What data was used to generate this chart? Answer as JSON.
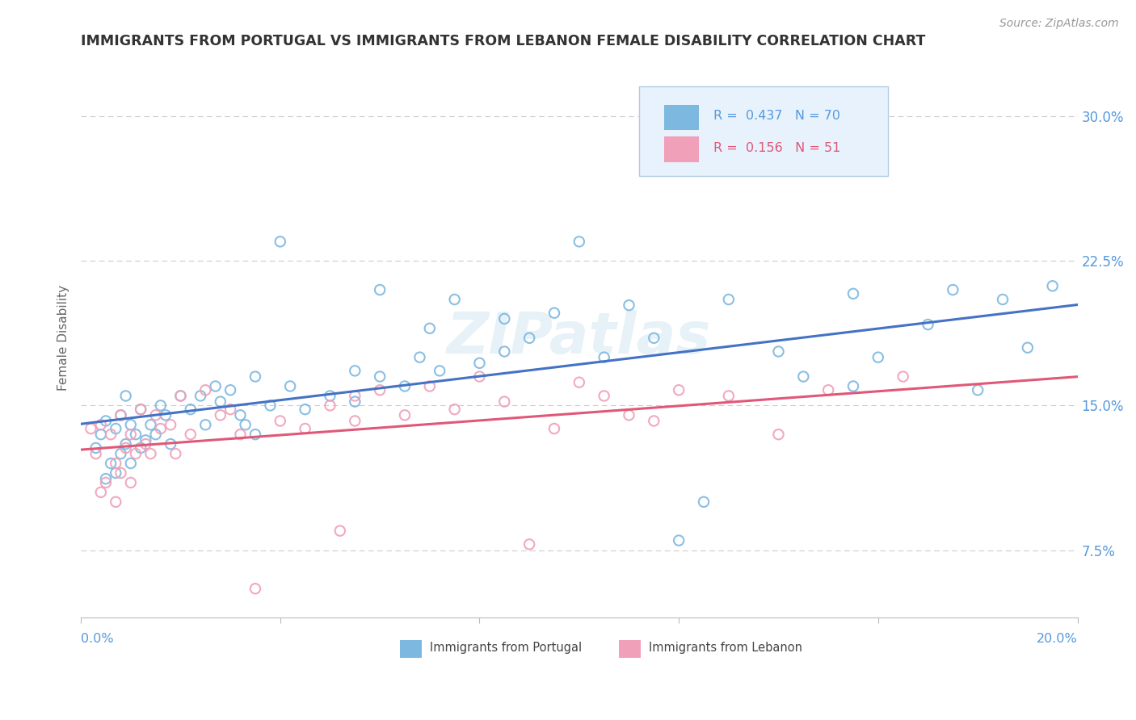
{
  "title": "IMMIGRANTS FROM PORTUGAL VS IMMIGRANTS FROM LEBANON FEMALE DISABILITY CORRELATION CHART",
  "source": "Source: ZipAtlas.com",
  "ylabel_label": "Female Disability",
  "xlim": [
    0.0,
    20.0
  ],
  "ylim": [
    4.0,
    33.0
  ],
  "yticks": [
    7.5,
    15.0,
    22.5,
    30.0
  ],
  "xticks": [
    0.0,
    4.0,
    8.0,
    12.0,
    16.0,
    20.0
  ],
  "portugal_color": "#7db8e0",
  "lebanon_color": "#f0a0b8",
  "portugal_line_color": "#4472c4",
  "lebanon_line_color": "#e05878",
  "portugal_R": 0.437,
  "portugal_N": 70,
  "lebanon_R": 0.156,
  "lebanon_N": 51,
  "portugal_points": [
    [
      0.3,
      12.8
    ],
    [
      0.4,
      13.5
    ],
    [
      0.5,
      11.2
    ],
    [
      0.5,
      14.2
    ],
    [
      0.6,
      12.0
    ],
    [
      0.7,
      13.8
    ],
    [
      0.7,
      11.5
    ],
    [
      0.8,
      14.5
    ],
    [
      0.8,
      12.5
    ],
    [
      0.9,
      13.0
    ],
    [
      0.9,
      15.5
    ],
    [
      1.0,
      12.0
    ],
    [
      1.0,
      14.0
    ],
    [
      1.1,
      13.5
    ],
    [
      1.2,
      12.8
    ],
    [
      1.2,
      14.8
    ],
    [
      1.3,
      13.2
    ],
    [
      1.4,
      14.0
    ],
    [
      1.5,
      13.5
    ],
    [
      1.6,
      15.0
    ],
    [
      1.7,
      14.5
    ],
    [
      1.8,
      13.0
    ],
    [
      2.0,
      15.5
    ],
    [
      2.2,
      14.8
    ],
    [
      2.4,
      15.5
    ],
    [
      2.5,
      14.0
    ],
    [
      2.7,
      16.0
    ],
    [
      2.8,
      15.2
    ],
    [
      3.0,
      15.8
    ],
    [
      3.2,
      14.5
    ],
    [
      3.3,
      14.0
    ],
    [
      3.5,
      16.5
    ],
    [
      3.5,
      13.5
    ],
    [
      3.8,
      15.0
    ],
    [
      4.0,
      23.5
    ],
    [
      4.2,
      16.0
    ],
    [
      4.5,
      14.8
    ],
    [
      5.0,
      15.5
    ],
    [
      5.5,
      16.8
    ],
    [
      5.5,
      15.2
    ],
    [
      6.0,
      16.5
    ],
    [
      6.0,
      21.0
    ],
    [
      6.5,
      16.0
    ],
    [
      6.8,
      17.5
    ],
    [
      7.0,
      19.0
    ],
    [
      7.2,
      16.8
    ],
    [
      7.5,
      20.5
    ],
    [
      8.0,
      17.2
    ],
    [
      8.5,
      17.8
    ],
    [
      8.5,
      19.5
    ],
    [
      9.0,
      18.5
    ],
    [
      9.5,
      19.8
    ],
    [
      10.0,
      23.5
    ],
    [
      10.5,
      17.5
    ],
    [
      11.0,
      20.2
    ],
    [
      11.5,
      18.5
    ],
    [
      12.0,
      8.0
    ],
    [
      12.5,
      10.0
    ],
    [
      13.0,
      20.5
    ],
    [
      14.0,
      17.8
    ],
    [
      14.5,
      16.5
    ],
    [
      15.5,
      16.0
    ],
    [
      15.5,
      20.8
    ],
    [
      16.0,
      17.5
    ],
    [
      17.0,
      19.2
    ],
    [
      17.5,
      21.0
    ],
    [
      18.0,
      15.8
    ],
    [
      18.5,
      20.5
    ],
    [
      19.0,
      18.0
    ],
    [
      19.5,
      21.2
    ]
  ],
  "lebanon_points": [
    [
      0.2,
      13.8
    ],
    [
      0.3,
      12.5
    ],
    [
      0.4,
      10.5
    ],
    [
      0.4,
      14.0
    ],
    [
      0.5,
      11.0
    ],
    [
      0.6,
      13.5
    ],
    [
      0.7,
      12.0
    ],
    [
      0.7,
      10.0
    ],
    [
      0.8,
      14.5
    ],
    [
      0.8,
      11.5
    ],
    [
      0.9,
      12.8
    ],
    [
      1.0,
      11.0
    ],
    [
      1.0,
      13.5
    ],
    [
      1.1,
      12.5
    ],
    [
      1.2,
      14.8
    ],
    [
      1.3,
      13.0
    ],
    [
      1.4,
      12.5
    ],
    [
      1.5,
      14.5
    ],
    [
      1.6,
      13.8
    ],
    [
      1.8,
      14.0
    ],
    [
      1.9,
      12.5
    ],
    [
      2.0,
      15.5
    ],
    [
      2.2,
      13.5
    ],
    [
      2.5,
      15.8
    ],
    [
      2.8,
      14.5
    ],
    [
      3.0,
      14.8
    ],
    [
      3.2,
      13.5
    ],
    [
      3.5,
      5.5
    ],
    [
      4.0,
      14.2
    ],
    [
      4.5,
      13.8
    ],
    [
      5.0,
      15.0
    ],
    [
      5.2,
      8.5
    ],
    [
      5.5,
      14.2
    ],
    [
      5.5,
      15.5
    ],
    [
      6.0,
      15.8
    ],
    [
      6.5,
      14.5
    ],
    [
      7.0,
      16.0
    ],
    [
      7.5,
      14.8
    ],
    [
      8.0,
      16.5
    ],
    [
      8.5,
      15.2
    ],
    [
      9.0,
      7.8
    ],
    [
      9.5,
      13.8
    ],
    [
      10.0,
      16.2
    ],
    [
      10.5,
      15.5
    ],
    [
      11.0,
      14.5
    ],
    [
      11.5,
      14.2
    ],
    [
      12.0,
      15.8
    ],
    [
      13.0,
      15.5
    ],
    [
      14.0,
      13.5
    ],
    [
      15.0,
      15.8
    ],
    [
      16.5,
      16.5
    ]
  ],
  "background_color": "#ffffff",
  "grid_color": "#cccccc",
  "text_watermark": "ZIPatlas",
  "title_color": "#333333",
  "axis_label_color": "#5599dd",
  "legend_box_color": "#e8f2fc",
  "legend_border_color": "#b0cce8"
}
